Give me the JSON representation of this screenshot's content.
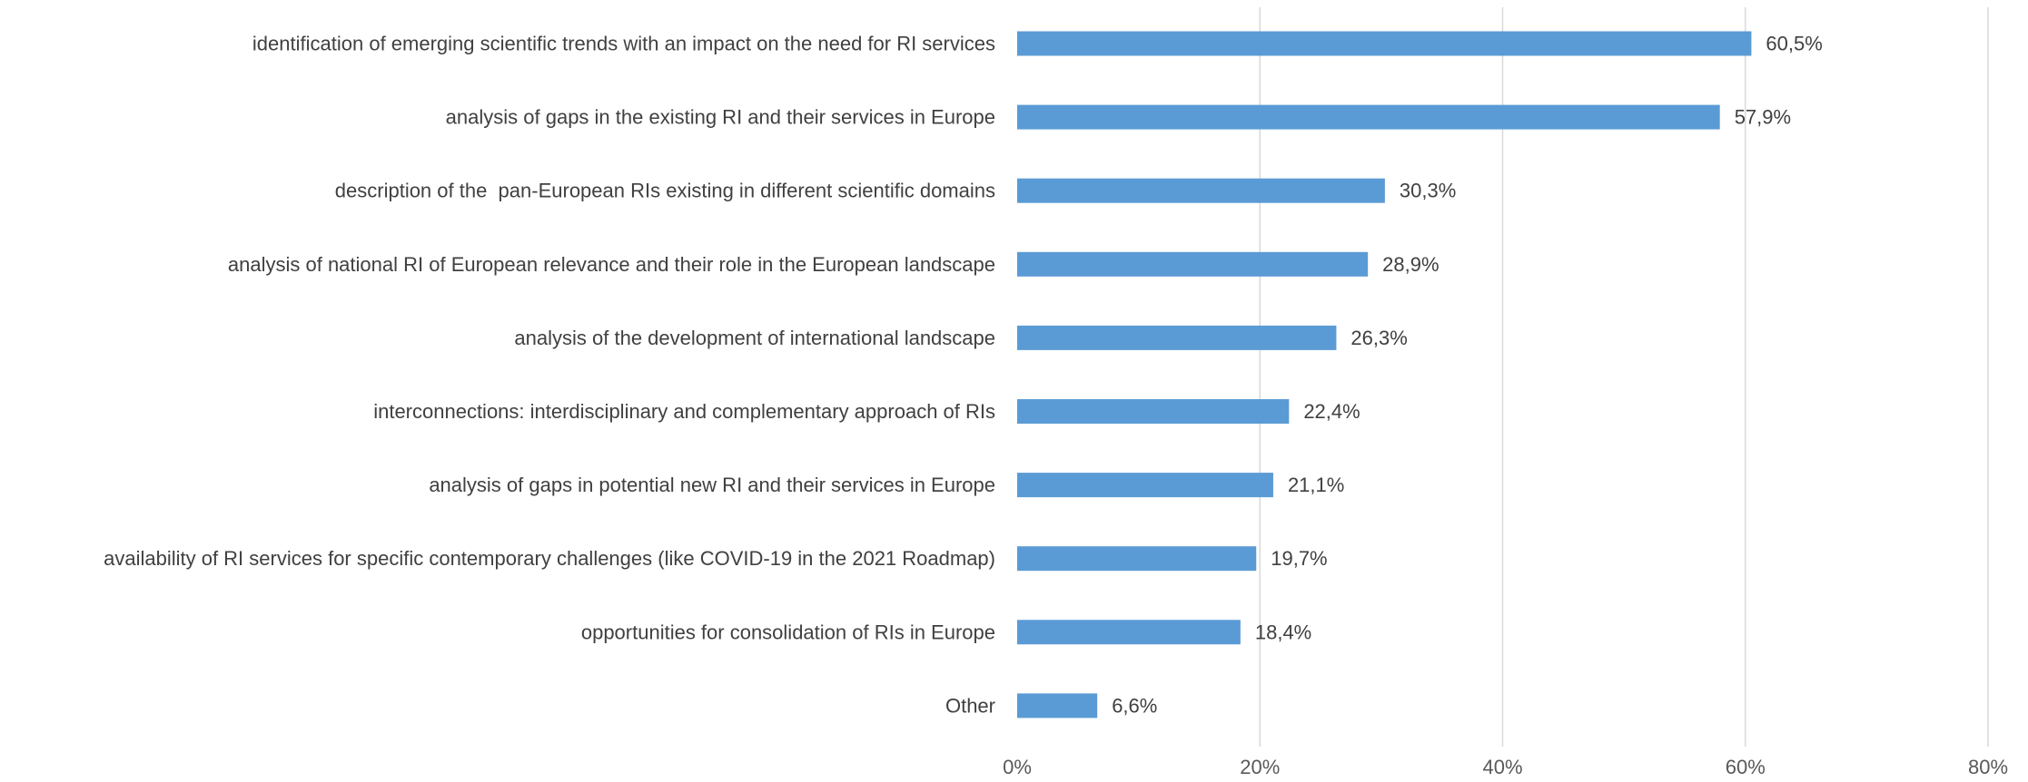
{
  "chart_data": {
    "type": "bar",
    "orientation": "horizontal",
    "categories": [
      "identification of emerging scientific trends with an impact on the need for RI services",
      "analysis of gaps in the existing RI and their services in Europe",
      "description of the  pan-European RIs existing in different scientific domains",
      "analysis of national RI of European relevance and their role in the European landscape",
      "analysis of the development of international landscape",
      "interconnections: interdisciplinary and complementary approach of RIs",
      "analysis of gaps in potential new RI and their services in Europe",
      "availability of RI services for specific contemporary challenges (like COVID-19 in the 2021 Roadmap)",
      "opportunities for consolidation of RIs in Europe",
      "Other"
    ],
    "values": [
      60.5,
      57.9,
      30.3,
      28.9,
      26.3,
      22.4,
      21.1,
      19.7,
      18.4,
      6.6
    ],
    "value_labels": [
      "60,5%",
      "57,9%",
      "30,3%",
      "28,9%",
      "26,3%",
      "22,4%",
      "21,1%",
      "19,7%",
      "18,4%",
      "6,6%"
    ],
    "xlim": [
      0,
      80
    ],
    "ticks": [
      0,
      20,
      40,
      60,
      80
    ],
    "tick_labels": [
      "0%",
      "20%",
      "40%",
      "60%",
      "80%"
    ],
    "grid": true,
    "legend": "none",
    "title": "",
    "xlabel": "",
    "ylabel": "",
    "bar_color": "#5b9bd5",
    "grid_color": "#d9d9d9",
    "text_color": "#404040",
    "tick_color": "#595959"
  }
}
